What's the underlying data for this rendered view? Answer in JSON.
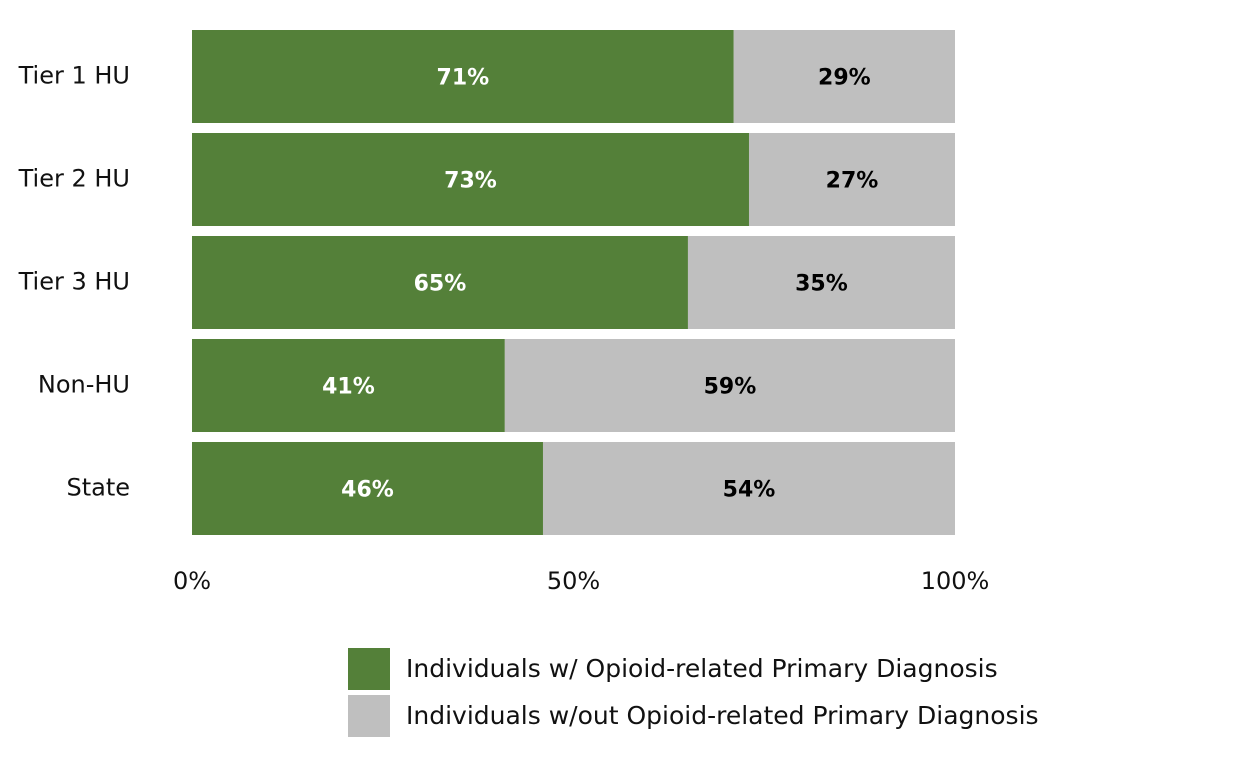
{
  "chart_data": {
    "type": "bar",
    "orientation": "horizontal",
    "stacked": true,
    "categories": [
      "Tier 1 HU",
      "Tier 2 HU",
      "Tier 3 HU",
      "Non-HU",
      "State"
    ],
    "series": [
      {
        "name": "Individuals w/ Opioid-related Primary Diagnosis",
        "values": [
          71,
          73,
          65,
          41,
          46
        ],
        "labels": [
          "71%",
          "73%",
          "65%",
          "41%",
          "46%"
        ],
        "color": "#548039",
        "label_color": "#ffffff"
      },
      {
        "name": "Individuals w/out Opioid-related Primary Diagnosis",
        "values": [
          29,
          27,
          35,
          59,
          54
        ],
        "labels": [
          "29%",
          "27%",
          "35%",
          "59%",
          "54%"
        ],
        "color": "#bfbfbf",
        "label_color": "#000000"
      }
    ],
    "xlim": [
      0,
      100
    ],
    "x_ticks": [
      0,
      50,
      100
    ],
    "x_tick_labels": [
      "0%",
      "50%",
      "100%"
    ],
    "grid": false,
    "legend_position": "bottom"
  }
}
